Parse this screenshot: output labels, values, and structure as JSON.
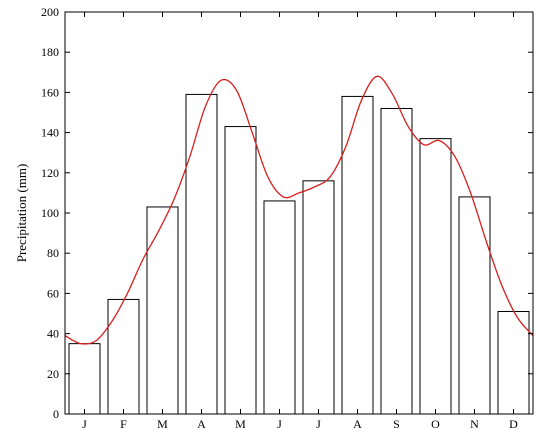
{
  "chart_data": {
    "type": "bar",
    "title": "",
    "xlabel": "",
    "ylabel": "Precipitation (mm)",
    "categories": [
      "J",
      "F",
      "M",
      "A",
      "M",
      "J",
      "J",
      "A",
      "S",
      "O",
      "N",
      "D"
    ],
    "values": [
      35,
      57,
      103,
      159,
      143,
      106,
      116,
      158,
      152,
      137,
      108,
      51
    ],
    "ylim": [
      0,
      200
    ],
    "yticks": [
      "0",
      "20",
      "40",
      "60",
      "80",
      "100",
      "120",
      "140",
      "160",
      "180",
      "200"
    ],
    "grid": false,
    "bar_fill": "#ffffff",
    "bar_stroke": "#000000",
    "curve": {
      "type": "line",
      "color": "#d62020",
      "points": [
        [
          0,
          39
        ],
        [
          0.5,
          35
        ],
        [
          1,
          36.5
        ],
        [
          1.5,
          46
        ],
        [
          2,
          60
        ],
        [
          2.5,
          77
        ],
        [
          3,
          91
        ],
        [
          3.5,
          107
        ],
        [
          4,
          128
        ],
        [
          4.5,
          153
        ],
        [
          5,
          166
        ],
        [
          5.5,
          161
        ],
        [
          6,
          140
        ],
        [
          6.5,
          118
        ],
        [
          7,
          108
        ],
        [
          7.5,
          110
        ],
        [
          8,
          113
        ],
        [
          8.5,
          118
        ],
        [
          9,
          133
        ],
        [
          9.5,
          156
        ],
        [
          10,
          168
        ],
        [
          10.5,
          159
        ],
        [
          11,
          143
        ],
        [
          11.5,
          134
        ],
        [
          12,
          136
        ],
        [
          12.5,
          128
        ],
        [
          13,
          110
        ],
        [
          13.5,
          86
        ],
        [
          14,
          64
        ],
        [
          14.5,
          48
        ],
        [
          15,
          39
        ]
      ]
    }
  }
}
